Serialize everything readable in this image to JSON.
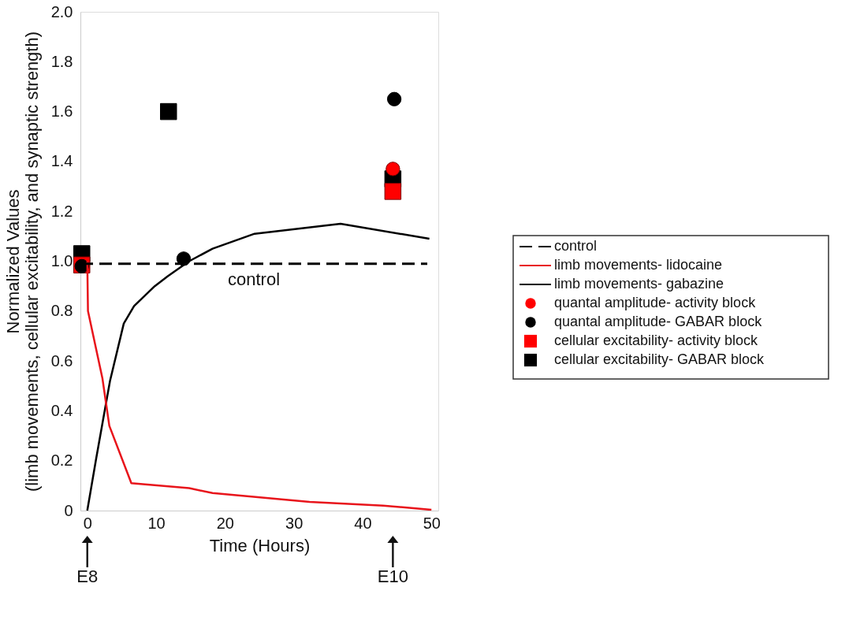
{
  "chart_data": {
    "type": "line",
    "xlabel": "Time (Hours)",
    "ylabel": "Normalized Values\n(limb movements, cellular excitability, and synaptic strength)",
    "xlim": [
      -1,
      51
    ],
    "ylim": [
      0,
      2
    ],
    "xticks": [
      0,
      10,
      20,
      30,
      40,
      50
    ],
    "yticks": [
      0,
      0.2,
      0.4,
      0.6,
      0.8,
      {
        "value": 1,
        "label": "1.0"
      },
      1.2,
      1.4,
      1.6,
      1.8,
      {
        "value": 2,
        "label": "2.0"
      }
    ],
    "grid": false,
    "legend": "right",
    "series": [
      {
        "name": "control",
        "line_style": "dashed",
        "color": "#000000",
        "x": [
          -1,
          49.4
        ],
        "values": [
          0.99,
          0.99
        ]
      },
      {
        "name": "limb movements- lidocaine",
        "line_style": "solid",
        "color": "#e8141b",
        "x": [
          0,
          0.1,
          2.2,
          3.2,
          6.4,
          14.8,
          18.2,
          32.3,
          43,
          50
        ],
        "values": [
          1.0,
          0.8,
          0.53,
          0.34,
          0.11,
          0.09,
          0.07,
          0.035,
          0.02,
          0.003
        ]
      },
      {
        "name": "limb movements- gabazine",
        "line_style": "solid",
        "color": "#000000",
        "x": [
          0,
          1.3,
          3.3,
          5.3,
          6.8,
          9.8,
          11.7,
          14.8,
          18.2,
          24.3,
          36.8,
          49.7
        ],
        "values": [
          0,
          0.21,
          0.52,
          0.75,
          0.82,
          0.9,
          0.94,
          1.0,
          1.05,
          1.11,
          1.15,
          1.09
        ]
      },
      {
        "name": "quantal amplitude- activity block",
        "type": "scatter",
        "marker": "circle",
        "color": "#ff0000",
        "x": [
          44.4
        ],
        "values": [
          1.37
        ]
      },
      {
        "name": "quantal amplitude- GABAR block",
        "type": "scatter",
        "marker": "circle",
        "color": "#000000",
        "x": [
          -0.8,
          14.0,
          44.6
        ],
        "values": [
          0.98,
          1.01,
          1.65
        ]
      },
      {
        "name": "cellular excitability- activity block",
        "type": "scatter",
        "marker": "square",
        "color": "#ff0000",
        "x": [
          -0.8,
          44.4
        ],
        "values": [
          0.985,
          1.28
        ]
      },
      {
        "name": "cellular excitability- GABAR block",
        "type": "scatter",
        "marker": "square",
        "color": "#000000",
        "x": [
          -0.8,
          11.8,
          44.4
        ],
        "values": [
          1.03,
          1.6,
          1.33
        ]
      }
    ],
    "annotations": [
      "control",
      "E8",
      "E10"
    ]
  }
}
